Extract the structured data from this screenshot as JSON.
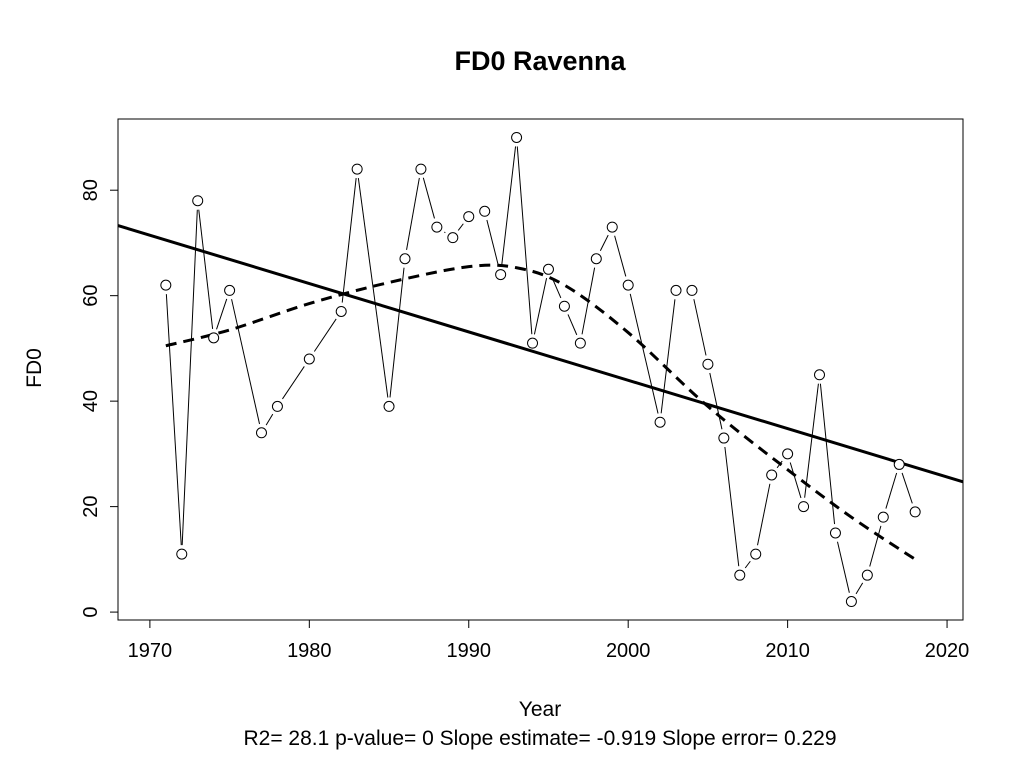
{
  "chart_data": {
    "type": "scatter",
    "title": "FD0   Ravenna",
    "xlabel": "Year",
    "ylabel": "FD0",
    "stats_line": "R2= 28.1  p-value= 0  Slope estimate= -0.919  Slope error= 0.229",
    "xlim": [
      1968,
      2021
    ],
    "ylim": [
      -1.5,
      93.5
    ],
    "x_ticks": [
      1970,
      1980,
      1990,
      2000,
      2010,
      2020
    ],
    "y_ticks": [
      0,
      20,
      40,
      60,
      80
    ],
    "grid": false,
    "series": [
      {
        "style": "points-with-connecting-lines",
        "x": [
          1971,
          1972,
          1973,
          1974,
          1975,
          1977,
          1978,
          1980,
          1982,
          1983,
          1985,
          1986,
          1987,
          1988,
          1989,
          1990,
          1991,
          1992,
          1993,
          1994,
          1995,
          1996,
          1997,
          1998,
          1999,
          2000,
          2002,
          2003,
          2004,
          2005,
          2006,
          2007,
          2008,
          2009,
          2010,
          2011,
          2012,
          2013,
          2014,
          2015,
          2016,
          2017,
          2018
        ],
        "y": [
          62,
          11,
          78,
          52,
          61,
          34,
          39,
          48,
          57,
          84,
          39,
          67,
          84,
          73,
          71,
          75,
          76,
          64,
          90,
          51,
          65,
          58,
          51,
          67,
          73,
          62,
          36,
          61,
          61,
          47,
          33,
          7,
          11,
          26,
          30,
          20,
          45,
          15,
          2,
          7,
          18,
          28,
          19
        ]
      },
      {
        "style": "linear-trend-solid",
        "x": [
          1968,
          2021
        ],
        "y": [
          73.3,
          24.7
        ]
      },
      {
        "style": "smooth-dashed",
        "x": [
          1971,
          1975,
          1980,
          1985,
          1990,
          1993,
          1996,
          2000,
          2005,
          2010,
          2014,
          2018
        ],
        "y": [
          50.5,
          53.5,
          58.5,
          62.5,
          65.5,
          65.3,
          62,
          53,
          39,
          27,
          18,
          10
        ]
      }
    ]
  }
}
